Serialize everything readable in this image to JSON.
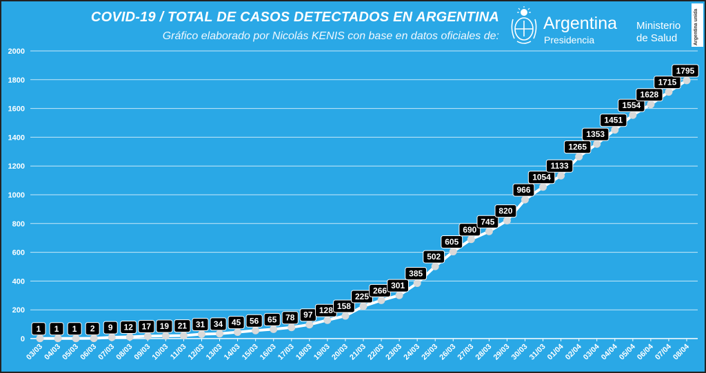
{
  "header": {
    "title": "COVID-19  /  TOTAL DE CASOS DETECTADOS EN ARGENTINA",
    "subtitle": "Gráfico elaborado por Nicolás KENIS con base en datos oficiales de:"
  },
  "logos": {
    "presidencia_name": "Argentina",
    "presidencia_sub": "Presidencia",
    "ministerio_line1": "Ministerio",
    "ministerio_line2": "de Salud",
    "badge_text": "Argentina unida",
    "crest_icon": "coat-of-arms-icon"
  },
  "colors": {
    "background": "#2aa8e6",
    "line": "#ffffff",
    "marker": "#d9d9d9",
    "label_box": "#000000",
    "label_text": "#ffffff"
  },
  "chart_data": {
    "type": "line",
    "categories": [
      "03/03",
      "04/03",
      "05/03",
      "06/03",
      "07/03",
      "08/03",
      "09/03",
      "10/03",
      "11/03",
      "12/03",
      "13/03",
      "14/03",
      "15/03",
      "16/03",
      "17/03",
      "18/03",
      "19/03",
      "20/03",
      "21/03",
      "22/03",
      "23/03",
      "24/03",
      "25/03",
      "26/03",
      "27/03",
      "28/03",
      "29/03",
      "30/03",
      "31/03",
      "01/04",
      "02/04",
      "03/04",
      "04/04",
      "05/04",
      "06/04",
      "07/04",
      "08/04"
    ],
    "values": [
      1,
      1,
      1,
      2,
      9,
      12,
      17,
      19,
      21,
      31,
      34,
      45,
      56,
      65,
      78,
      97,
      128,
      158,
      225,
      266,
      301,
      385,
      502,
      605,
      690,
      745,
      820,
      966,
      1054,
      1133,
      1265,
      1353,
      1451,
      1554,
      1628,
      1715,
      1795
    ],
    "ylim": [
      0,
      2000
    ],
    "yticks": [
      0,
      200,
      400,
      600,
      800,
      1000,
      1200,
      1400,
      1600,
      1800,
      2000
    ],
    "grid": true,
    "data_labels": true
  }
}
